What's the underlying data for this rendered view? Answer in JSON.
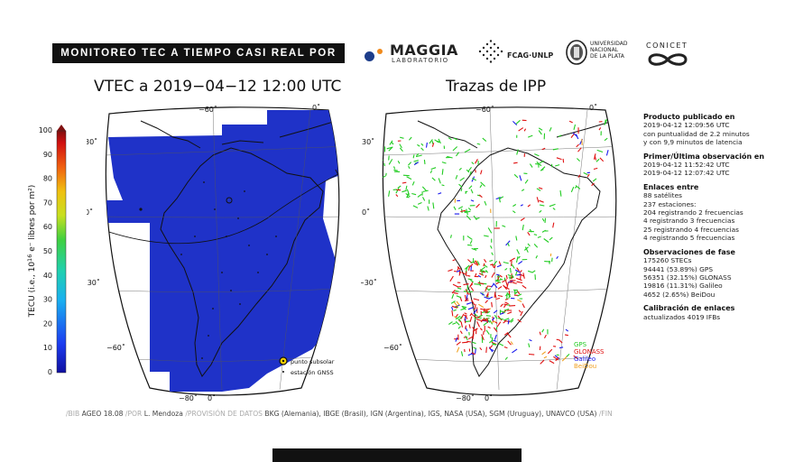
{
  "header": {
    "banner": "MONITOREO TEC A TIEMPO CASI REAL POR",
    "logos": {
      "maggia_name": "MAGGIA",
      "maggia_sub": "LABORATORIO",
      "fcag": "FCAG·UNLP",
      "unlp_lines": [
        "UNIVERSIDAD",
        "NACIONAL",
        "DE LA PLATA"
      ],
      "conicet": "CONICET"
    }
  },
  "left_map": {
    "title": "VTEC a 2019−04−12 12:00 UTC",
    "lon_labels": [
      "−60˚",
      "0˚",
      "−80˚",
      "0˚"
    ],
    "lat_labels": [
      "30˚",
      "0˚",
      "−30˚",
      "−60˚"
    ],
    "legend": {
      "subsolar": "punto subsolar",
      "gnss": "estación GNSS"
    },
    "fill_color": "#1f32c8",
    "land_color": "#111111"
  },
  "colorbar": {
    "label": "TECU (i.e., 10",
    "label_sup": "16",
    "label_rest": " e⁻ libres por m²)",
    "ticks": [
      "100",
      "90",
      "80",
      "70",
      "60",
      "50",
      "40",
      "30",
      "20",
      "10",
      "0"
    ]
  },
  "right_map": {
    "title": "Trazas de IPP",
    "lon_labels": [
      "−60˚",
      "0˚",
      "−80˚",
      "0˚"
    ],
    "lat_labels": [
      "30˚",
      "0˚",
      "−30˚",
      "−60˚"
    ],
    "legend": [
      {
        "name": "GPS",
        "color": "#22cc22"
      },
      {
        "name": "GLONASS",
        "color": "#e01010"
      },
      {
        "name": "Galileo",
        "color": "#1a1aee"
      },
      {
        "name": "BeiDou",
        "color": "#f0a020"
      }
    ]
  },
  "info": {
    "sections": [
      {
        "heading": "Producto publicado en",
        "lines": [
          "2019-04-12 12:09:56 UTC",
          "con puntualidad de 2.2 minutos",
          "y con 9,9 minutos de latencia"
        ]
      },
      {
        "heading": "Primer/Última observación en",
        "lines": [
          "2019-04-12 11:52:42 UTC",
          "2019-04-12 12:07:42 UTC"
        ]
      },
      {
        "heading": "Enlaces entre",
        "lines": [
          "88 satélites",
          "237 estaciones:",
          "204 registrando 2 frecuencias",
          "4 registrando 3 frecuencias",
          "25 registrando 4 frecuencias",
          "4 registrando 5 frecuencias"
        ]
      },
      {
        "heading": "Observaciones de fase",
        "lines": [
          "175260 STECs",
          "94441 (53.89%) GPS",
          "56351 (32.15%) GLONASS",
          "19816 (11.31%) Galileo",
          "4652 (2.65%) BeiDou"
        ]
      },
      {
        "heading": "Calibración de enlaces",
        "lines": [
          "actualizados 4019 IFBs"
        ]
      }
    ]
  },
  "credits": {
    "p1": "/BIB",
    "p2": " AGEO 18.08 ",
    "p3": "/POR",
    "p4": " L. Mendoza ",
    "p5": "/PROVISIÓN DE DATOS",
    "p6": " BKG (Alemania), IBGE (Brasil), IGN (Argentina), IGS, NASA (USA), SGM (Uruguay), UNAVCO (USA) ",
    "p7": "/FIN"
  }
}
